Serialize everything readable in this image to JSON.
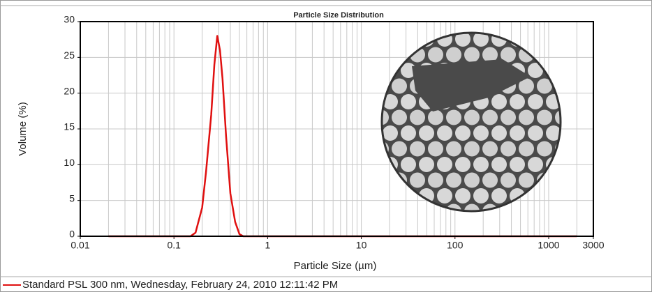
{
  "chart_data": {
    "type": "line",
    "title": "Particle Size Distribution",
    "x_label": "Particle Size (µm)",
    "y_label": "Volume (%)",
    "x": [
      0.02,
      0.15,
      0.17,
      0.2,
      0.22,
      0.25,
      0.27,
      0.29,
      0.31,
      0.33,
      0.36,
      0.4,
      0.45,
      0.5,
      0.55,
      2000
    ],
    "series": [
      {
        "name": "Standard PSL 300 nm, Wednesday, February 24, 2010 12:11:42 PM",
        "color": "#e01010",
        "values": [
          0,
          0,
          0.5,
          4,
          9,
          17,
          24,
          28,
          26,
          22,
          14,
          6,
          2,
          0.3,
          0,
          0
        ]
      }
    ],
    "xlim": [
      0.01,
      3000
    ],
    "xticks": [
      0.01,
      0.1,
      1,
      10,
      100,
      1000,
      3000
    ],
    "xscale": "log",
    "ylim": [
      0,
      30
    ],
    "yticks": [
      0,
      5,
      10,
      15,
      20,
      25,
      30
    ],
    "grid": true
  }
}
